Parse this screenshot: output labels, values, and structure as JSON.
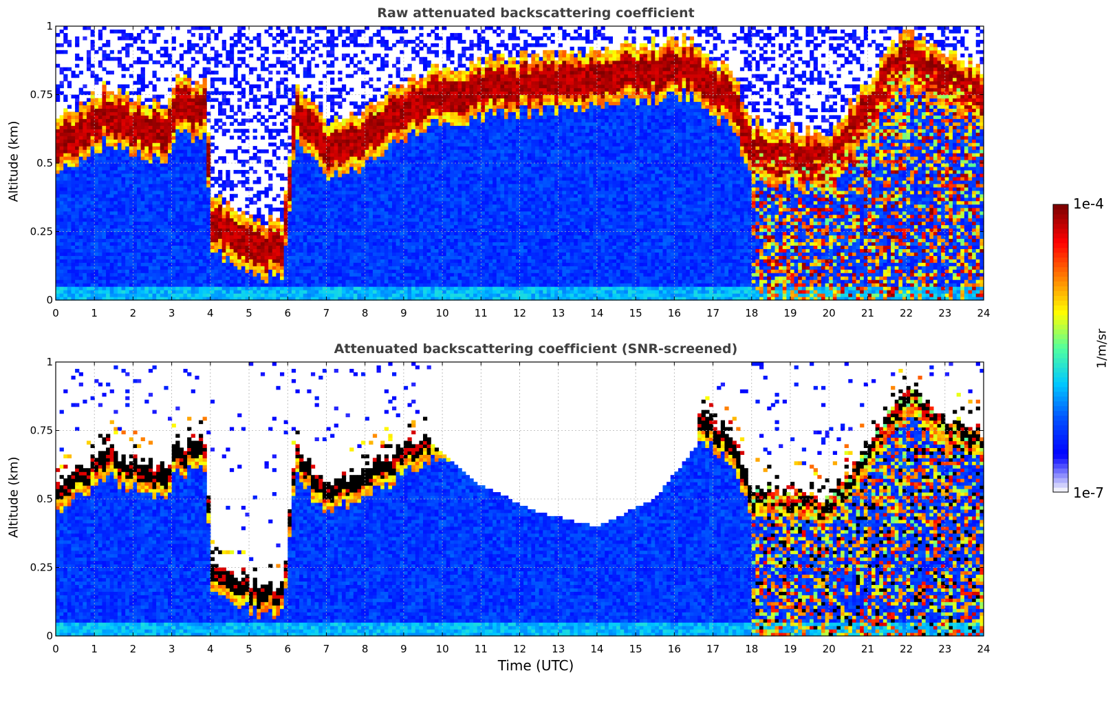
{
  "chart_data": [
    {
      "type": "heatmap",
      "title": "Raw attenuated backscattering coefficient",
      "ylabel": "Altitude (km)",
      "xlabel": "",
      "xlim": [
        0,
        24
      ],
      "ylim": [
        0,
        1
      ],
      "xticks": [
        0,
        1,
        2,
        3,
        4,
        5,
        6,
        7,
        8,
        9,
        10,
        11,
        12,
        13,
        14,
        15,
        16,
        17,
        18,
        19,
        20,
        21,
        22,
        23,
        24
      ],
      "yticks": [
        0,
        0.25,
        0.5,
        0.75,
        1
      ],
      "ytick_labels": [
        "0",
        "0.25",
        "0.5",
        "0.75",
        "1"
      ],
      "grid": true,
      "aerosol_layer_top_km": [
        [
          0,
          0.55
        ],
        [
          0.5,
          0.6
        ],
        [
          1.3,
          0.68
        ],
        [
          2.2,
          0.63
        ],
        [
          2.9,
          0.6
        ],
        [
          3.0,
          0.7
        ],
        [
          3.9,
          0.7
        ],
        [
          4.0,
          0.28
        ],
        [
          4.5,
          0.25
        ],
        [
          5.3,
          0.18
        ],
        [
          5.9,
          0.2
        ],
        [
          6.2,
          0.7
        ],
        [
          7.0,
          0.55
        ],
        [
          8.0,
          0.6
        ],
        [
          9.0,
          0.7
        ],
        [
          9.7,
          0.75
        ],
        [
          16.5,
          0.85
        ],
        [
          17.5,
          0.72
        ],
        [
          18.0,
          0.55
        ],
        [
          20.0,
          0.5
        ],
        [
          22.0,
          0.9
        ],
        [
          23.0,
          0.8
        ],
        [
          24.0,
          0.75
        ]
      ]
    },
    {
      "type": "heatmap",
      "title": "Attenuated backscattering coefficient (SNR-screened)",
      "ylabel": "Altitude (km)",
      "xlabel": "Time (UTC)",
      "xlim": [
        0,
        24
      ],
      "ylim": [
        0,
        1
      ],
      "xticks": [
        0,
        1,
        2,
        3,
        4,
        5,
        6,
        7,
        8,
        9,
        10,
        11,
        12,
        13,
        14,
        15,
        16,
        17,
        18,
        19,
        20,
        21,
        22,
        23,
        24
      ],
      "yticks": [
        0,
        0.25,
        0.5,
        0.75,
        1
      ],
      "ytick_labels": [
        "0",
        "0.25",
        "0.5",
        "0.75",
        "1"
      ],
      "grid": true,
      "screened_boundary_km": [
        [
          9.7,
          0.7
        ],
        [
          11,
          0.55
        ],
        [
          12.5,
          0.45
        ],
        [
          14,
          0.4
        ],
        [
          15.5,
          0.5
        ],
        [
          16.6,
          0.7
        ]
      ]
    }
  ],
  "colorbar": {
    "label": "1/m/sr",
    "max_label": "1e-4",
    "min_label": "1e-7",
    "scale": "log",
    "range": [
      1e-07,
      0.0001
    ],
    "colormap": [
      "#f0f0fb",
      "#0000ff",
      "#0050ff",
      "#00c8ff",
      "#50ffa0",
      "#ffff00",
      "#ff8000",
      "#ff0000",
      "#800000"
    ]
  }
}
